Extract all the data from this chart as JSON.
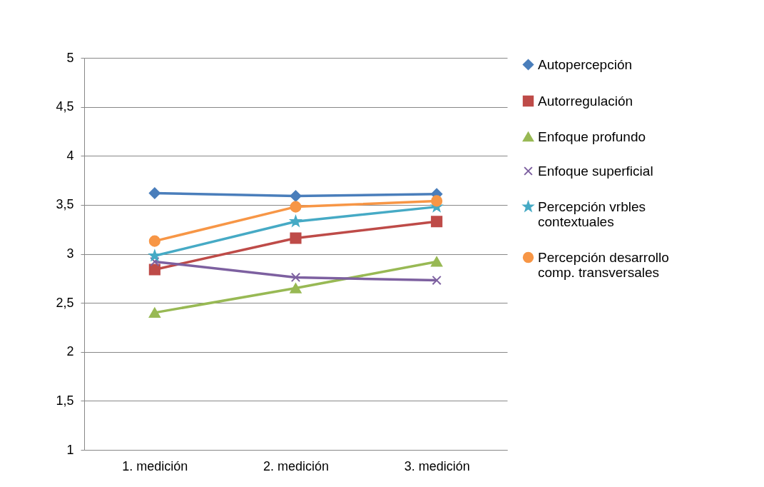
{
  "chart_data": {
    "type": "line",
    "categories": [
      "1. medición",
      "2. medición",
      "3. medición"
    ],
    "series": [
      {
        "name": "Autopercepción",
        "color": "#4a7ebb",
        "marker": "diamond",
        "values": [
          3.62,
          3.59,
          3.61
        ]
      },
      {
        "name": "Autorregulación",
        "color": "#be4b48",
        "marker": "square",
        "values": [
          2.84,
          3.16,
          3.33
        ]
      },
      {
        "name": "Enfoque profundo",
        "color": "#98b954",
        "marker": "triangle",
        "values": [
          2.4,
          2.65,
          2.92
        ]
      },
      {
        "name": "Enfoque superficial",
        "color": "#7d60a0",
        "marker": "cross",
        "values": [
          2.92,
          2.76,
          2.73
        ]
      },
      {
        "name": "Percepción vrbles contextuales",
        "color": "#46aac5",
        "marker": "star",
        "values": [
          2.98,
          3.33,
          3.48
        ]
      },
      {
        "name": "Percepción desarrollo comp. transversales",
        "color": "#f79646",
        "marker": "circle",
        "values": [
          3.13,
          3.48,
          3.54
        ]
      }
    ],
    "ylim": [
      1,
      5
    ],
    "yticks": [
      1,
      {
        "value": 1.5,
        "label": "1,5"
      },
      2,
      {
        "value": 2.5,
        "label": "2,5"
      },
      3,
      {
        "value": 3.5,
        "label": "3,5"
      },
      4,
      {
        "value": 4.5,
        "label": "4,5"
      },
      5
    ],
    "grid": "y",
    "legend": "right",
    "line_style": "solid"
  }
}
